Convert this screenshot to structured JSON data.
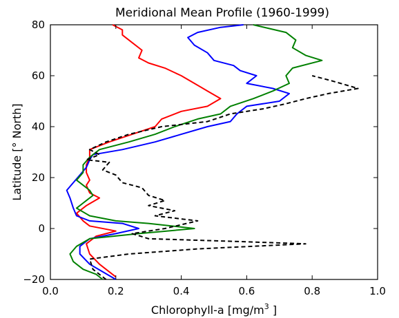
{
  "chart_data": {
    "type": "line",
    "title": "Meridional Mean Profile (1960-1999)",
    "xlabel": "Chlorophyll-a [mg/m",
    "xlabel_sup": "3",
    "xlabel_tail": " ]",
    "ylabel": "Latitude [° North]",
    "xlim": [
      0.0,
      1.0
    ],
    "ylim": [
      -20,
      80
    ],
    "xticks": [
      0.0,
      0.2,
      0.4,
      0.6,
      0.8,
      1.0
    ],
    "xtick_labels": [
      "0.0",
      "0.2",
      "0.4",
      "0.6",
      "0.8",
      "1.0"
    ],
    "yticks": [
      -20,
      0,
      20,
      40,
      60,
      80
    ],
    "ytick_labels": [
      "−20",
      "0",
      "20",
      "40",
      "60",
      "80"
    ],
    "grid": false,
    "series": [
      {
        "color": "#ff0000",
        "dash": "solid",
        "points": [
          [
            0.2,
            -19
          ],
          [
            0.18,
            -17
          ],
          [
            0.15,
            -14
          ],
          [
            0.12,
            -10
          ],
          [
            0.11,
            -6
          ],
          [
            0.14,
            -3
          ],
          [
            0.2,
            -1
          ],
          [
            0.12,
            1
          ],
          [
            0.1,
            3
          ],
          [
            0.08,
            6
          ],
          [
            0.11,
            9
          ],
          [
            0.15,
            12
          ],
          [
            0.12,
            14
          ],
          [
            0.11,
            17
          ],
          [
            0.12,
            19
          ],
          [
            0.11,
            22
          ],
          [
            0.11,
            25
          ],
          [
            0.12,
            28
          ],
          [
            0.12,
            31
          ],
          [
            0.18,
            34
          ],
          [
            0.25,
            37
          ],
          [
            0.32,
            40
          ],
          [
            0.34,
            43
          ],
          [
            0.4,
            46
          ],
          [
            0.48,
            48
          ],
          [
            0.52,
            51
          ],
          [
            0.48,
            54
          ],
          [
            0.44,
            57
          ],
          [
            0.4,
            60
          ],
          [
            0.35,
            63
          ],
          [
            0.3,
            65
          ],
          [
            0.27,
            67
          ],
          [
            0.28,
            70
          ],
          [
            0.25,
            73
          ],
          [
            0.22,
            76
          ],
          [
            0.22,
            78
          ],
          [
            0.19,
            80
          ]
        ]
      },
      {
        "color": "#0000ff",
        "dash": "solid",
        "points": [
          [
            0.2,
            -20
          ],
          [
            0.16,
            -17
          ],
          [
            0.12,
            -14
          ],
          [
            0.09,
            -10
          ],
          [
            0.09,
            -7
          ],
          [
            0.12,
            -4
          ],
          [
            0.2,
            -2
          ],
          [
            0.27,
            0
          ],
          [
            0.22,
            2
          ],
          [
            0.12,
            3
          ],
          [
            0.08,
            5
          ],
          [
            0.07,
            8
          ],
          [
            0.06,
            12
          ],
          [
            0.05,
            15
          ],
          [
            0.07,
            18
          ],
          [
            0.09,
            21
          ],
          [
            0.11,
            24
          ],
          [
            0.12,
            27
          ],
          [
            0.13,
            29
          ],
          [
            0.22,
            31
          ],
          [
            0.32,
            34
          ],
          [
            0.4,
            37
          ],
          [
            0.48,
            40
          ],
          [
            0.55,
            42
          ],
          [
            0.57,
            45
          ],
          [
            0.6,
            48
          ],
          [
            0.7,
            50
          ],
          [
            0.73,
            53
          ],
          [
            0.68,
            55
          ],
          [
            0.6,
            57
          ],
          [
            0.63,
            60
          ],
          [
            0.58,
            62
          ],
          [
            0.56,
            64
          ],
          [
            0.5,
            66
          ],
          [
            0.48,
            69
          ],
          [
            0.44,
            72
          ],
          [
            0.42,
            75
          ],
          [
            0.45,
            77
          ],
          [
            0.52,
            79
          ],
          [
            0.59,
            80
          ]
        ]
      },
      {
        "color": "#008000",
        "dash": "solid",
        "points": [
          [
            0.16,
            -20
          ],
          [
            0.14,
            -18
          ],
          [
            0.1,
            -16
          ],
          [
            0.07,
            -13
          ],
          [
            0.06,
            -10
          ],
          [
            0.08,
            -7
          ],
          [
            0.12,
            -4
          ],
          [
            0.27,
            -2
          ],
          [
            0.44,
            0
          ],
          [
            0.3,
            2
          ],
          [
            0.2,
            3
          ],
          [
            0.12,
            5
          ],
          [
            0.08,
            8
          ],
          [
            0.1,
            10
          ],
          [
            0.13,
            13
          ],
          [
            0.12,
            15
          ],
          [
            0.1,
            17
          ],
          [
            0.08,
            19
          ],
          [
            0.1,
            22
          ],
          [
            0.1,
            25
          ],
          [
            0.12,
            28
          ],
          [
            0.15,
            31
          ],
          [
            0.24,
            34
          ],
          [
            0.32,
            37
          ],
          [
            0.38,
            40
          ],
          [
            0.45,
            43
          ],
          [
            0.52,
            45
          ],
          [
            0.55,
            48
          ],
          [
            0.62,
            51
          ],
          [
            0.68,
            54
          ],
          [
            0.73,
            57
          ],
          [
            0.72,
            60
          ],
          [
            0.74,
            63
          ],
          [
            0.83,
            66
          ],
          [
            0.78,
            68
          ],
          [
            0.74,
            71
          ],
          [
            0.75,
            74
          ],
          [
            0.72,
            77
          ],
          [
            0.62,
            80
          ]
        ]
      },
      {
        "color": "#000000",
        "dash": "dashed",
        "points": [
          [
            0.17,
            -20
          ],
          [
            0.13,
            -16
          ],
          [
            0.12,
            -12
          ],
          [
            0.24,
            -10
          ],
          [
            0.45,
            -8
          ],
          [
            0.78,
            -6
          ],
          [
            0.55,
            -5
          ],
          [
            0.3,
            -4
          ],
          [
            0.25,
            -2
          ],
          [
            0.35,
            0
          ],
          [
            0.45,
            3
          ],
          [
            0.32,
            5
          ],
          [
            0.38,
            7
          ],
          [
            0.3,
            9
          ],
          [
            0.35,
            11
          ],
          [
            0.3,
            13
          ],
          [
            0.28,
            16
          ],
          [
            0.22,
            18
          ],
          [
            0.2,
            21
          ],
          [
            0.16,
            23
          ],
          [
            0.18,
            26
          ],
          [
            0.11,
            27
          ],
          [
            0.15,
            29
          ],
          [
            0.12,
            31
          ],
          [
            0.17,
            34
          ],
          [
            0.24,
            37
          ],
          [
            0.34,
            40
          ],
          [
            0.48,
            42
          ],
          [
            0.55,
            45
          ],
          [
            0.65,
            47
          ],
          [
            0.72,
            49
          ],
          [
            0.78,
            51
          ],
          [
            0.85,
            53
          ],
          [
            0.94,
            55
          ],
          [
            0.86,
            58
          ],
          [
            0.8,
            60
          ]
        ]
      }
    ]
  }
}
